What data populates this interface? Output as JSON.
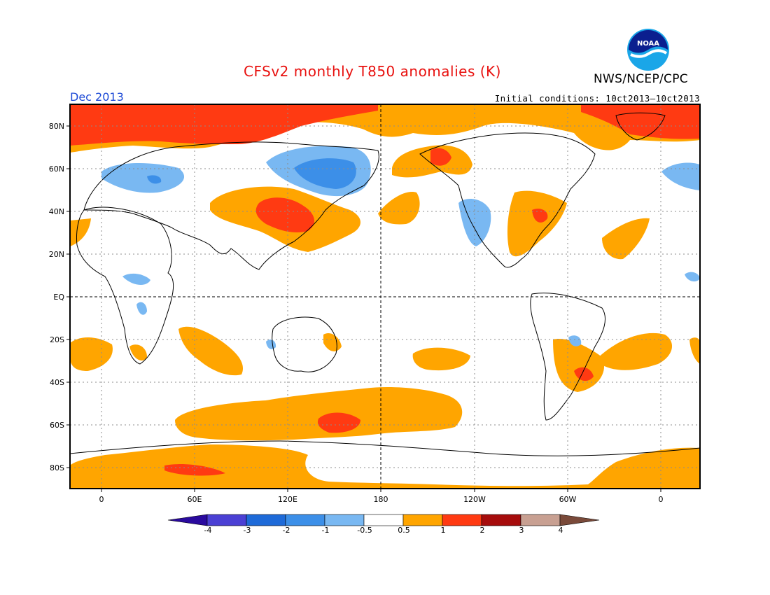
{
  "header": {
    "title": "CFSv2 monthly T850 anomalies (K)",
    "agency": "NWS/NCEP/CPC",
    "logo_text": "NOAA",
    "month": "Dec 2013",
    "initial_conditions": "Initial conditions: 10ct2013–10ct2013"
  },
  "map": {
    "lat_labels": [
      "80N",
      "60N",
      "40N",
      "20N",
      "EQ",
      "20S",
      "40S",
      "60S",
      "80S"
    ],
    "lon_labels": [
      "0",
      "60E",
      "120E",
      "180",
      "120W",
      "60W",
      "0"
    ],
    "grid_lines": true,
    "reference_lines": [
      "EQ",
      "180"
    ]
  },
  "colorbar": {
    "labels": [
      "-4",
      "-3",
      "-2",
      "-1",
      "-0.5",
      "0.5",
      "1",
      "2",
      "3",
      "4"
    ],
    "colors": [
      "#2a0a9e",
      "#4b40d4",
      "#1e6ad8",
      "#3c8fe8",
      "#79b8f2",
      "#ffffff",
      "#ffa500",
      "#ff3a12",
      "#a60c0c",
      "#c8a092",
      "#7a4a3a"
    ]
  },
  "palette": {
    "warm1": "#ffa500",
    "warm2": "#ff3a12",
    "cool1": "#79b8f2",
    "cool2": "#3c8fe8",
    "cool3": "#1e6ad8"
  }
}
